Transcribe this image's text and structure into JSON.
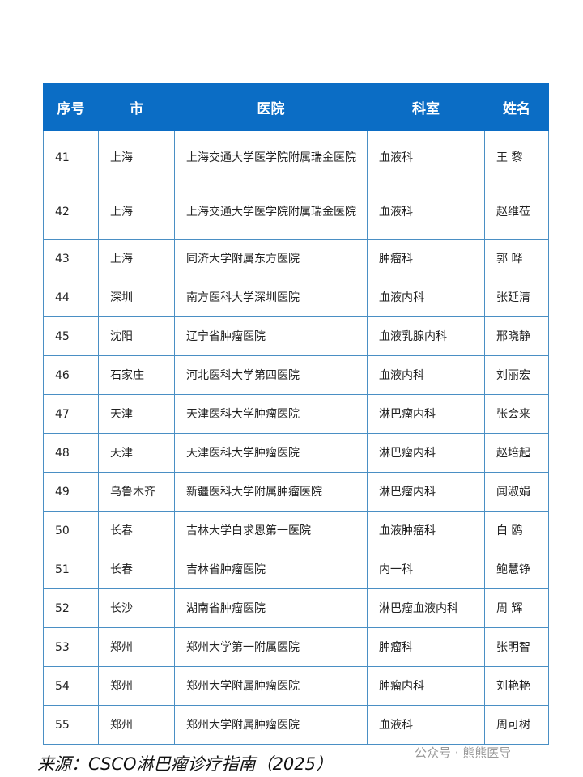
{
  "table": {
    "headers": [
      "序号",
      "市",
      "医院",
      "科室",
      "姓名"
    ],
    "rows": [
      [
        "41",
        "上海",
        "上海交通大学医学院附属瑞金医院",
        "血液科",
        "王 黎"
      ],
      [
        "42",
        "上海",
        "上海交通大学医学院附属瑞金医院",
        "血液科",
        "赵维莅"
      ],
      [
        "43",
        "上海",
        "同济大学附属东方医院",
        "肿瘤科",
        "郭 晔"
      ],
      [
        "44",
        "深圳",
        "南方医科大学深圳医院",
        "血液内科",
        "张延清"
      ],
      [
        "45",
        "沈阳",
        "辽宁省肿瘤医院",
        "血液乳腺内科",
        "邢晓静"
      ],
      [
        "46",
        "石家庄",
        "河北医科大学第四医院",
        "血液内科",
        "刘丽宏"
      ],
      [
        "47",
        "天津",
        "天津医科大学肿瘤医院",
        "淋巴瘤内科",
        "张会来"
      ],
      [
        "48",
        "天津",
        "天津医科大学肿瘤医院",
        "淋巴瘤内科",
        "赵培起"
      ],
      [
        "49",
        "乌鲁木齐",
        "新疆医科大学附属肿瘤医院",
        "淋巴瘤内科",
        "闻淑娟"
      ],
      [
        "50",
        "长春",
        "吉林大学白求恩第一医院",
        "血液肿瘤科",
        "白 鸥"
      ],
      [
        "51",
        "长春",
        "吉林省肿瘤医院",
        "内一科",
        "鲍慧铮"
      ],
      [
        "52",
        "长沙",
        "湖南省肿瘤医院",
        "淋巴瘤血液内科",
        "周 辉"
      ],
      [
        "53",
        "郑州",
        "郑州大学第一附属医院",
        "肿瘤科",
        "张明智"
      ],
      [
        "54",
        "郑州",
        "郑州大学附属肿瘤医院",
        "肿瘤内科",
        "刘艳艳"
      ],
      [
        "55",
        "郑州",
        "郑州大学附属肿瘤医院",
        "血液科",
        "周可树"
      ]
    ]
  },
  "source": "来源：CSCO淋巴瘤诊疗指南（2025）",
  "watermark": "公众号 · 熊熊医导",
  "colors": {
    "header_bg": "#0b6dc5",
    "border": "#4a8fc4"
  }
}
